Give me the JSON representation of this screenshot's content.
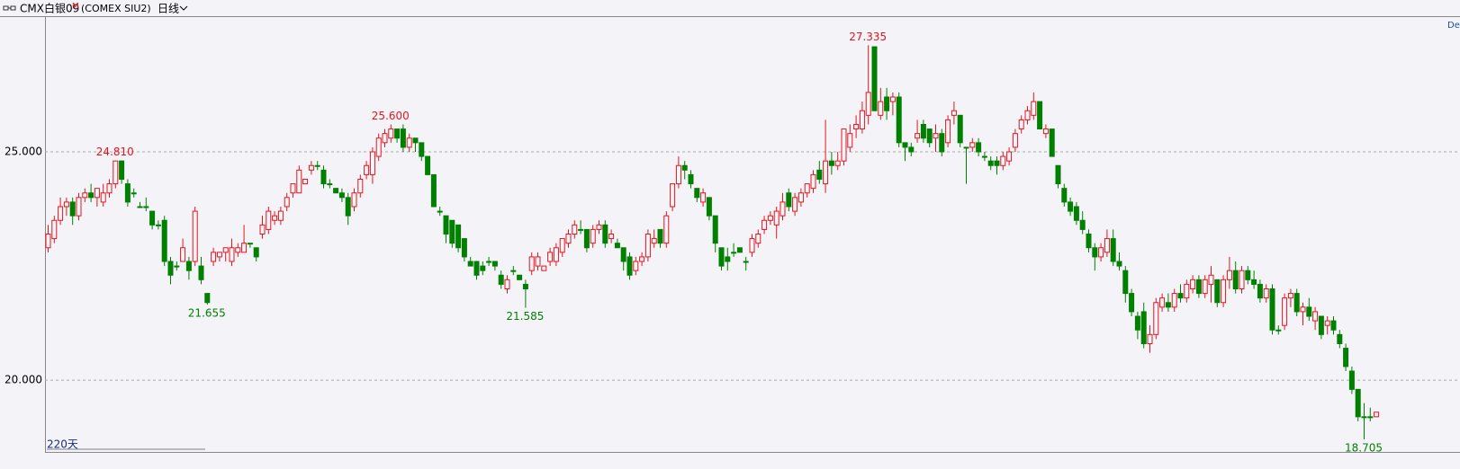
{
  "header": {
    "symbol": "CMX白银09",
    "badge": "M",
    "code": "(COMEX SIU2)",
    "period": "日线",
    "corner": "Del"
  },
  "chart_data": {
    "type": "candlestick",
    "footer": "220天",
    "up_color": "#e4141e",
    "down_color": "#008000",
    "grid": true,
    "ylim": [
      18.43,
      27.97
    ],
    "yticks": [
      {
        "value": 25,
        "label": "25.000"
      },
      {
        "value": 20,
        "label": "20.000"
      }
    ],
    "candles": [
      [
        22.9,
        23.4,
        22.8,
        23.2
      ],
      [
        23.1,
        23.6,
        23.0,
        23.5
      ],
      [
        23.5,
        24.0,
        23.4,
        23.8
      ],
      [
        23.8,
        24.0,
        23.6,
        23.9
      ],
      [
        23.9,
        24.0,
        23.4,
        23.6
      ],
      [
        23.6,
        24.1,
        23.5,
        24.0
      ],
      [
        24.0,
        24.2,
        23.9,
        24.1
      ],
      [
        24.1,
        24.3,
        23.9,
        24.0
      ],
      [
        24.0,
        24.2,
        23.8,
        24.2
      ],
      [
        23.9,
        24.3,
        23.8,
        24.1
      ],
      [
        24.1,
        24.4,
        24.0,
        24.3
      ],
      [
        24.3,
        24.81,
        24.2,
        24.8
      ],
      [
        24.8,
        24.81,
        24.3,
        24.4
      ],
      [
        24.3,
        24.4,
        23.8,
        23.9
      ],
      [
        24.1,
        24.2,
        24.0,
        24.1
      ],
      [
        23.8,
        23.9,
        23.8,
        23.8
      ],
      [
        23.8,
        24.0,
        23.7,
        23.8
      ],
      [
        23.7,
        23.7,
        23.3,
        23.4
      ],
      [
        23.4,
        23.5,
        23.3,
        23.4
      ],
      [
        23.5,
        23.6,
        22.5,
        22.6
      ],
      [
        22.6,
        22.7,
        22.1,
        22.3
      ],
      [
        22.5,
        22.6,
        22.4,
        22.5
      ],
      [
        22.6,
        23.1,
        22.6,
        22.9
      ],
      [
        22.6,
        22.7,
        22.2,
        22.4
      ],
      [
        22.6,
        23.8,
        22.5,
        23.7
      ],
      [
        22.5,
        22.7,
        22.1,
        22.2
      ],
      [
        21.9,
        21.9,
        21.655,
        21.7
      ],
      [
        22.6,
        22.9,
        22.5,
        22.8
      ],
      [
        22.7,
        22.8,
        22.6,
        22.8
      ],
      [
        22.8,
        22.9,
        22.6,
        22.9
      ],
      [
        22.6,
        23.1,
        22.5,
        22.9
      ],
      [
        22.8,
        23.0,
        22.7,
        22.9
      ],
      [
        22.8,
        23.4,
        22.8,
        23.0
      ],
      [
        23.0,
        23.0,
        22.9,
        23.0
      ],
      [
        22.9,
        22.9,
        22.6,
        22.7
      ],
      [
        23.2,
        23.6,
        23.1,
        23.4
      ],
      [
        23.3,
        23.8,
        23.2,
        23.7
      ],
      [
        23.5,
        23.7,
        23.4,
        23.6
      ],
      [
        23.5,
        23.8,
        23.4,
        23.7
      ],
      [
        23.8,
        24.1,
        23.7,
        24.0
      ],
      [
        24.1,
        24.3,
        24.0,
        24.3
      ],
      [
        24.1,
        24.7,
        24.1,
        24.6
      ],
      [
        24.3,
        24.4,
        24.3,
        24.4
      ],
      [
        24.6,
        24.8,
        24.5,
        24.7
      ],
      [
        24.7,
        24.8,
        24.6,
        24.7
      ],
      [
        24.6,
        24.7,
        24.2,
        24.3
      ],
      [
        24.3,
        24.4,
        24.2,
        24.3
      ],
      [
        24.2,
        24.2,
        24.1,
        24.1
      ],
      [
        24.1,
        24.2,
        23.9,
        24.0
      ],
      [
        24.0,
        24.1,
        23.4,
        23.6
      ],
      [
        23.8,
        24.2,
        23.7,
        24.1
      ],
      [
        24.1,
        24.5,
        24.0,
        24.4
      ],
      [
        24.5,
        24.8,
        24.4,
        24.7
      ],
      [
        24.5,
        25.1,
        24.3,
        25.0
      ],
      [
        24.9,
        25.4,
        24.8,
        25.3
      ],
      [
        25.2,
        25.5,
        25.1,
        25.4
      ],
      [
        25.3,
        25.6,
        25.2,
        25.5
      ],
      [
        25.5,
        25.5,
        25.2,
        25.3
      ],
      [
        25.5,
        25.6,
        25.0,
        25.1
      ],
      [
        25.1,
        25.4,
        25.0,
        25.3
      ],
      [
        25.3,
        25.3,
        25.0,
        25.2
      ],
      [
        25.2,
        25.2,
        24.8,
        24.9
      ],
      [
        24.9,
        24.9,
        24.5,
        24.5
      ],
      [
        24.5,
        24.5,
        23.8,
        23.8
      ],
      [
        23.7,
        23.8,
        23.6,
        23.7
      ],
      [
        23.6,
        23.6,
        23.0,
        23.2
      ],
      [
        23.5,
        23.5,
        22.9,
        23.0
      ],
      [
        23.4,
        23.4,
        22.8,
        22.9
      ],
      [
        23.1,
        23.1,
        22.6,
        22.7
      ],
      [
        22.6,
        22.7,
        22.5,
        22.5
      ],
      [
        22.6,
        22.6,
        22.2,
        22.3
      ],
      [
        22.5,
        22.6,
        22.3,
        22.4
      ],
      [
        22.6,
        22.7,
        22.5,
        22.6
      ],
      [
        22.6,
        22.6,
        22.4,
        22.5
      ],
      [
        22.3,
        22.4,
        22.0,
        22.1
      ],
      [
        22.0,
        22.3,
        21.9,
        22.2
      ],
      [
        22.4,
        22.5,
        22.3,
        22.4
      ],
      [
        22.3,
        22.3,
        22.2,
        22.2
      ],
      [
        22.1,
        22.2,
        21.585,
        22.0
      ],
      [
        22.4,
        22.8,
        22.3,
        22.7
      ],
      [
        22.5,
        22.8,
        22.4,
        22.7
      ],
      [
        22.4,
        22.5,
        22.4,
        22.5
      ],
      [
        22.6,
        22.9,
        22.5,
        22.8
      ],
      [
        22.6,
        23.0,
        22.5,
        22.9
      ],
      [
        22.8,
        23.1,
        22.7,
        23.1
      ],
      [
        23.0,
        23.3,
        22.9,
        23.2
      ],
      [
        23.2,
        23.5,
        23.1,
        23.4
      ],
      [
        23.3,
        23.5,
        23.2,
        23.3
      ],
      [
        23.3,
        23.3,
        22.8,
        22.9
      ],
      [
        23.0,
        23.4,
        22.9,
        23.3
      ],
      [
        23.3,
        23.5,
        23.2,
        23.4
      ],
      [
        23.4,
        23.5,
        22.9,
        23.0
      ],
      [
        23.1,
        23.3,
        23.0,
        23.2
      ],
      [
        23.0,
        23.1,
        22.9,
        22.9
      ],
      [
        22.9,
        22.9,
        22.4,
        22.6
      ],
      [
        22.7,
        22.8,
        22.2,
        22.3
      ],
      [
        22.4,
        22.7,
        22.3,
        22.6
      ],
      [
        22.6,
        22.8,
        22.5,
        22.7
      ],
      [
        22.7,
        23.3,
        22.6,
        23.2
      ],
      [
        23.0,
        23.3,
        22.9,
        23.1
      ],
      [
        23.3,
        23.3,
        22.9,
        23.0
      ],
      [
        23.0,
        23.7,
        22.9,
        23.6
      ],
      [
        23.8,
        24.3,
        23.7,
        24.3
      ],
      [
        24.3,
        24.9,
        24.2,
        24.7
      ],
      [
        24.7,
        24.8,
        24.4,
        24.6
      ],
      [
        24.5,
        24.6,
        24.2,
        24.3
      ],
      [
        24.2,
        24.2,
        23.9,
        24.0
      ],
      [
        23.9,
        24.2,
        23.8,
        24.1
      ],
      [
        24.0,
        24.0,
        23.5,
        23.6
      ],
      [
        23.6,
        23.6,
        22.8,
        23.0
      ],
      [
        22.9,
        22.9,
        22.4,
        22.5
      ],
      [
        22.7,
        22.9,
        22.4,
        22.6
      ],
      [
        22.8,
        23.0,
        22.7,
        22.8
      ],
      [
        22.9,
        22.9,
        22.8,
        22.8
      ],
      [
        22.6,
        22.7,
        22.4,
        22.6
      ],
      [
        22.8,
        23.2,
        22.7,
        23.1
      ],
      [
        23.0,
        23.3,
        22.9,
        23.2
      ],
      [
        23.3,
        23.6,
        23.2,
        23.5
      ],
      [
        23.5,
        23.7,
        23.4,
        23.6
      ],
      [
        23.4,
        23.8,
        23.1,
        23.7
      ],
      [
        23.6,
        24.1,
        23.5,
        23.9
      ],
      [
        24.1,
        24.2,
        23.7,
        23.8
      ],
      [
        23.7,
        24.1,
        23.6,
        24.0
      ],
      [
        23.9,
        24.2,
        23.8,
        24.1
      ],
      [
        24.1,
        24.3,
        24.0,
        24.3
      ],
      [
        24.2,
        24.6,
        24.1,
        24.5
      ],
      [
        24.6,
        24.8,
        24.3,
        24.4
      ],
      [
        24.3,
        25.7,
        24.1,
        24.8
      ],
      [
        24.8,
        25.0,
        24.5,
        24.7
      ],
      [
        24.7,
        25.0,
        24.6,
        24.8
      ],
      [
        24.8,
        25.5,
        24.7,
        25.5
      ],
      [
        25.1,
        25.6,
        25.0,
        25.4
      ],
      [
        25.5,
        25.8,
        25.3,
        25.6
      ],
      [
        25.5,
        26.1,
        25.4,
        25.9
      ],
      [
        25.8,
        27.335,
        25.6,
        26.3
      ],
      [
        27.3,
        27.3,
        25.9,
        25.9
      ],
      [
        25.8,
        26.4,
        25.7,
        26.1
      ],
      [
        26.2,
        26.4,
        25.7,
        25.9
      ],
      [
        26.1,
        26.3,
        25.8,
        26.2
      ],
      [
        26.2,
        26.3,
        25.1,
        25.2
      ],
      [
        25.2,
        25.2,
        24.8,
        25.1
      ],
      [
        25.1,
        25.2,
        24.9,
        25.0
      ],
      [
        25.3,
        25.7,
        25.2,
        25.4
      ],
      [
        25.6,
        25.7,
        25.2,
        25.3
      ],
      [
        25.5,
        25.5,
        25.1,
        25.2
      ],
      [
        25.3,
        25.6,
        25.0,
        25.4
      ],
      [
        25.4,
        25.5,
        24.9,
        25.0
      ],
      [
        25.2,
        25.8,
        25.1,
        25.7
      ],
      [
        25.8,
        26.1,
        25.6,
        25.9
      ],
      [
        25.8,
        25.8,
        25.1,
        25.2
      ],
      [
        25.1,
        25.1,
        24.3,
        25.1
      ],
      [
        25.1,
        25.3,
        25.0,
        25.2
      ],
      [
        25.2,
        25.3,
        24.9,
        25.0
      ],
      [
        24.9,
        25.0,
        24.8,
        24.9
      ],
      [
        24.8,
        24.9,
        24.6,
        24.7
      ],
      [
        24.8,
        24.9,
        24.5,
        24.7
      ],
      [
        24.7,
        25.0,
        24.6,
        24.9
      ],
      [
        24.8,
        25.1,
        24.7,
        25.0
      ],
      [
        25.1,
        25.5,
        25.0,
        25.4
      ],
      [
        25.5,
        25.8,
        25.4,
        25.7
      ],
      [
        25.7,
        26.0,
        25.6,
        25.9
      ],
      [
        25.8,
        26.3,
        25.7,
        26.1
      ],
      [
        26.1,
        26.1,
        25.5,
        25.5
      ],
      [
        25.4,
        25.6,
        25.3,
        25.5
      ],
      [
        25.5,
        25.5,
        24.9,
        24.9
      ],
      [
        24.7,
        24.7,
        24.2,
        24.3
      ],
      [
        24.2,
        24.3,
        23.8,
        23.9
      ],
      [
        23.9,
        24.0,
        23.6,
        23.7
      ],
      [
        23.8,
        23.9,
        23.4,
        23.5
      ],
      [
        23.5,
        23.7,
        23.2,
        23.3
      ],
      [
        23.2,
        23.3,
        22.8,
        22.9
      ],
      [
        22.9,
        23.0,
        22.4,
        22.7
      ],
      [
        22.7,
        23.0,
        22.6,
        22.9
      ],
      [
        22.8,
        23.3,
        22.7,
        23.1
      ],
      [
        23.1,
        23.3,
        22.5,
        22.6
      ],
      [
        22.6,
        22.8,
        22.4,
        22.5
      ],
      [
        22.4,
        22.5,
        21.7,
        21.9
      ],
      [
        21.9,
        22.0,
        21.4,
        21.5
      ],
      [
        21.4,
        21.5,
        20.9,
        21.1
      ],
      [
        21.5,
        21.7,
        20.7,
        20.8
      ],
      [
        20.8,
        21.2,
        20.6,
        21.0
      ],
      [
        21.0,
        21.8,
        20.9,
        21.7
      ],
      [
        21.6,
        21.9,
        21.5,
        21.8
      ],
      [
        21.7,
        21.9,
        21.5,
        21.6
      ],
      [
        21.6,
        22.0,
        21.5,
        21.9
      ],
      [
        21.9,
        22.1,
        21.7,
        21.8
      ],
      [
        21.8,
        22.2,
        21.7,
        22.1
      ],
      [
        22.0,
        22.3,
        21.9,
        22.2
      ],
      [
        22.2,
        22.3,
        21.8,
        21.9
      ],
      [
        21.9,
        22.3,
        21.8,
        22.2
      ],
      [
        22.1,
        22.5,
        21.7,
        22.3
      ],
      [
        22.2,
        22.2,
        21.6,
        21.7
      ],
      [
        21.7,
        22.3,
        21.6,
        22.2
      ],
      [
        22.2,
        22.7,
        22.0,
        22.4
      ],
      [
        22.4,
        22.6,
        21.9,
        22.0
      ],
      [
        22.0,
        22.5,
        21.9,
        22.4
      ],
      [
        22.4,
        22.5,
        22.1,
        22.2
      ],
      [
        22.2,
        22.4,
        22.0,
        22.1
      ],
      [
        22.1,
        22.2,
        21.7,
        21.8
      ],
      [
        21.8,
        22.1,
        21.7,
        22.0
      ],
      [
        22.0,
        22.1,
        21.0,
        21.1
      ],
      [
        21.1,
        21.2,
        21.0,
        21.1
      ],
      [
        21.2,
        21.9,
        21.1,
        21.8
      ],
      [
        21.8,
        22.0,
        21.6,
        21.9
      ],
      [
        21.9,
        22.0,
        21.4,
        21.5
      ],
      [
        21.5,
        21.7,
        21.2,
        21.6
      ],
      [
        21.6,
        21.8,
        21.3,
        21.4
      ],
      [
        21.3,
        21.6,
        21.1,
        21.5
      ],
      [
        21.4,
        21.4,
        20.9,
        21.0
      ],
      [
        21.2,
        21.4,
        21.0,
        21.3
      ],
      [
        21.3,
        21.4,
        21.0,
        21.1
      ],
      [
        21.0,
        21.1,
        20.7,
        20.8
      ],
      [
        20.7,
        20.8,
        20.2,
        20.3
      ],
      [
        20.2,
        20.3,
        19.7,
        19.8
      ],
      [
        19.8,
        19.8,
        19.1,
        19.2
      ],
      [
        19.2,
        19.5,
        18.705,
        19.2
      ],
      [
        19.2,
        19.4,
        19.1,
        19.2
      ],
      [
        19.2,
        19.3,
        19.2,
        19.3
      ]
    ],
    "annotations": [
      {
        "label": "24.810",
        "value": 24.81,
        "at": 11,
        "kind": "high"
      },
      {
        "label": "21.655",
        "value": 21.655,
        "at": 26,
        "kind": "low"
      },
      {
        "label": "25.600",
        "value": 25.6,
        "at": 56,
        "kind": "high"
      },
      {
        "label": "21.585",
        "value": 21.585,
        "at": 78,
        "kind": "low"
      },
      {
        "label": "27.335",
        "value": 27.335,
        "at": 134,
        "kind": "high"
      },
      {
        "label": "18.705",
        "value": 18.705,
        "at": 215,
        "kind": "low"
      }
    ]
  }
}
